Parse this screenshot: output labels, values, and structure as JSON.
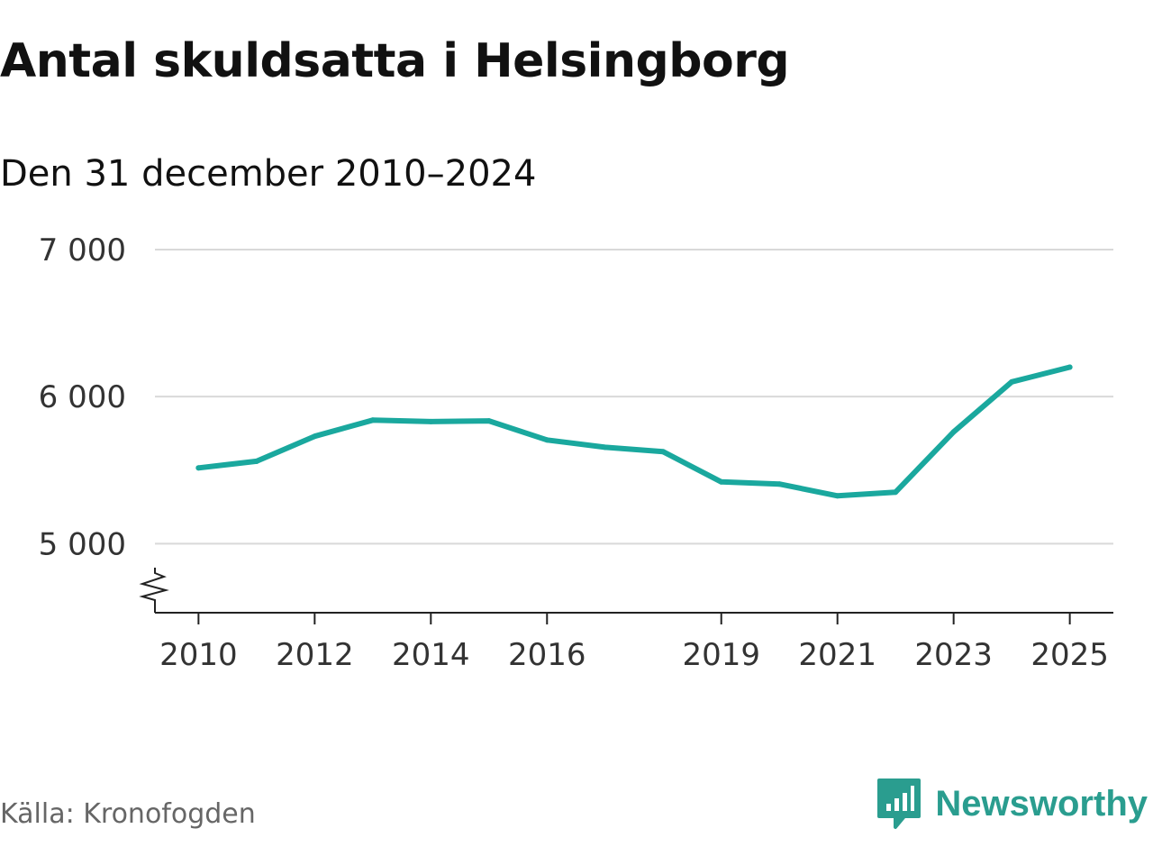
{
  "title": "Antal skuldsatta i Helsingborg",
  "subtitle": "Den 31 december 2010–2024",
  "source": "Källa: Kronofogden",
  "brand": {
    "name": "Newsworthy",
    "icon": "newsworthy-logo-icon",
    "color": "#2a9d8f"
  },
  "chart_data": {
    "type": "line",
    "line_color": "#1aa89e",
    "x": [
      2010,
      2011,
      2012,
      2013,
      2014,
      2015,
      2016,
      2017,
      2018,
      2019,
      2020,
      2021,
      2022,
      2023,
      2024,
      2025
    ],
    "series": [
      {
        "values": [
          5515,
          5560,
          5730,
          5840,
          5830,
          5835,
          5705,
          5655,
          5625,
          5420,
          5405,
          5325,
          5350,
          5760,
          6100,
          6200
        ]
      }
    ],
    "xlim": [
      2009.25,
      2025.75
    ],
    "ylim": [
      4530,
      7000
    ],
    "x_ticks": [
      {
        "value": 2010,
        "label": "2010"
      },
      {
        "value": 2012,
        "label": "2012"
      },
      {
        "value": 2014,
        "label": "2014"
      },
      {
        "value": 2016,
        "label": "2016"
      },
      {
        "value": 2019,
        "label": "2019"
      },
      {
        "value": 2021,
        "label": "2021"
      },
      {
        "value": 2023,
        "label": "2023"
      },
      {
        "value": 2025,
        "label": "2025"
      }
    ],
    "y_ticks": [
      {
        "value": 5000,
        "label": "5 000"
      },
      {
        "value": 6000,
        "label": "6 000"
      },
      {
        "value": 7000,
        "label": "7 000"
      }
    ],
    "grid": true,
    "axis_break": true
  }
}
